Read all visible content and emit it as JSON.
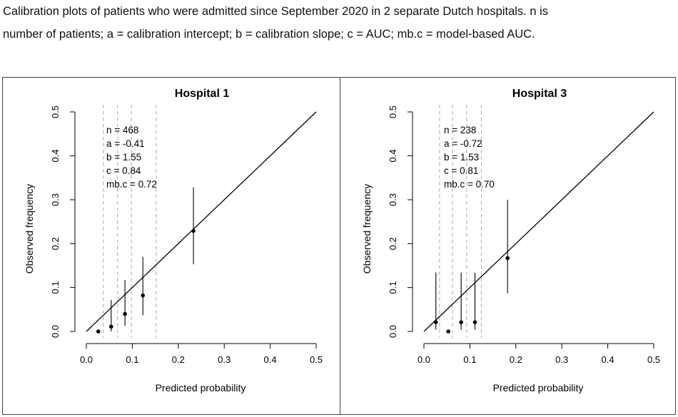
{
  "caption": {
    "line1": "Calibration plots of patients who were admitted since September 2020 in 2 separate Dutch hospitals. n is",
    "line2": "number of patients; a = calibration intercept; b = calibration slope; c = AUC; mb.c = model-based AUC."
  },
  "chart_data": [
    {
      "type": "scatter",
      "title": "Hospital 1",
      "xlabel": "Predicted probability",
      "ylabel": "Observed frequency",
      "xlim": [
        0,
        0.5
      ],
      "ylim": [
        0,
        0.5
      ],
      "xticks": [
        "0.0",
        "0.1",
        "0.2",
        "0.3",
        "0.4",
        "0.5"
      ],
      "yticks": [
        "0.0",
        "0.1",
        "0.2",
        "0.3",
        "0.4",
        "0.5"
      ],
      "reference_line": [
        [
          0,
          0
        ],
        [
          0.5,
          0.5
        ]
      ],
      "group_cutoffs": [
        0.037,
        0.068,
        0.098,
        0.152
      ],
      "stats": [
        "n = 468",
        "a = -0.41",
        "b = 1.55",
        "c = 0.84",
        "mb.c = 0.72"
      ],
      "points": [
        {
          "x": 0.026,
          "y": 0.0,
          "low": null,
          "high": null
        },
        {
          "x": 0.054,
          "y": 0.011,
          "low": 0.0,
          "high": 0.072
        },
        {
          "x": 0.084,
          "y": 0.04,
          "low": 0.013,
          "high": 0.117
        },
        {
          "x": 0.123,
          "y": 0.082,
          "low": 0.037,
          "high": 0.17
        },
        {
          "x": 0.233,
          "y": 0.229,
          "low": 0.153,
          "high": 0.328
        }
      ]
    },
    {
      "type": "scatter",
      "title": "Hospital 3",
      "xlabel": "Predicted probability",
      "ylabel": "Observed frequency",
      "xlim": [
        0,
        0.5
      ],
      "ylim": [
        0,
        0.5
      ],
      "xticks": [
        "0.0",
        "0.1",
        "0.2",
        "0.3",
        "0.4",
        "0.5"
      ],
      "yticks": [
        "0.0",
        "0.1",
        "0.2",
        "0.3",
        "0.4",
        "0.5"
      ],
      "reference_line": [
        [
          0,
          0
        ],
        [
          0.5,
          0.5
        ]
      ],
      "group_cutoffs": [
        0.034,
        0.062,
        0.093,
        0.125
      ],
      "stats": [
        "n = 238",
        "a = -0.72",
        "b = 1.53",
        "c = 0.81",
        "mb.c = 0.70"
      ],
      "points": [
        {
          "x": 0.026,
          "y": 0.021,
          "low": 0.004,
          "high": 0.134
        },
        {
          "x": 0.053,
          "y": 0.0,
          "low": null,
          "high": null
        },
        {
          "x": 0.081,
          "y": 0.021,
          "low": 0.004,
          "high": 0.134
        },
        {
          "x": 0.111,
          "y": 0.021,
          "low": 0.004,
          "high": 0.134
        },
        {
          "x": 0.182,
          "y": 0.167,
          "low": 0.087,
          "high": 0.3
        }
      ]
    }
  ]
}
